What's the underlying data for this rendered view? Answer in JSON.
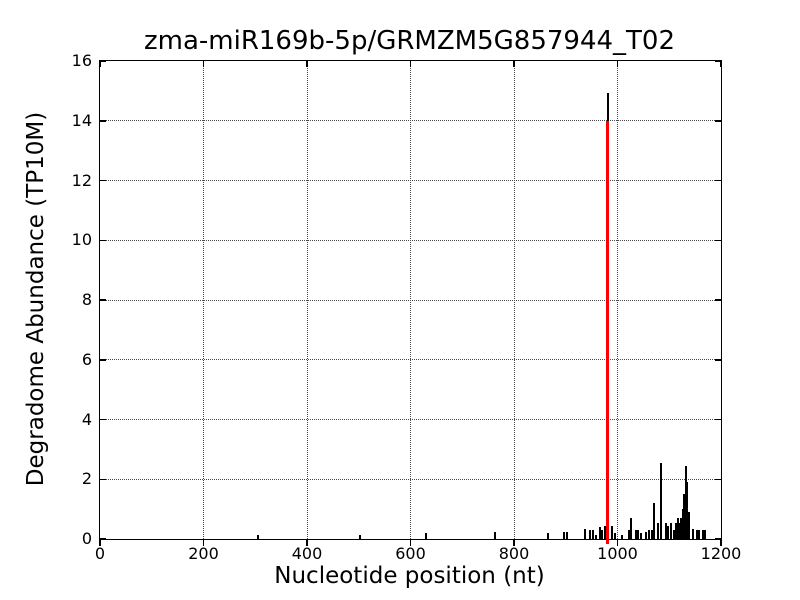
{
  "figure": {
    "background": "#ffffff",
    "axis_color": "#000000"
  },
  "chart_data": {
    "type": "bar",
    "title": "zma-miR169b-5p/GRMZM5G857944_T02",
    "xlabel": "Nucleotide position (nt)",
    "ylabel": "Degradome Abundance (TP10M)",
    "xlim": [
      0,
      1200
    ],
    "ylim": [
      0,
      16
    ],
    "xticks": [
      0,
      200,
      400,
      600,
      800,
      1000,
      1200
    ],
    "yticks": [
      0,
      2,
      4,
      6,
      8,
      10,
      12,
      14,
      16
    ],
    "grid": "dotted-both-axes",
    "legend": "none",
    "bar_color": "#000000",
    "marker_color": "#ff0000",
    "peak": {
      "x": 981,
      "value": 14.93
    },
    "cleavage_marker": {
      "x": 981,
      "height": 14.0,
      "color": "#ff0000"
    },
    "bars": [
      [
        306,
        0.15
      ],
      [
        503,
        0.15
      ],
      [
        629,
        0.2
      ],
      [
        764,
        0.25
      ],
      [
        865,
        0.2
      ],
      [
        896,
        0.25
      ],
      [
        903,
        0.25
      ],
      [
        938,
        0.35
      ],
      [
        946,
        0.3
      ],
      [
        952,
        0.3
      ],
      [
        958,
        0.15
      ],
      [
        966,
        0.4
      ],
      [
        971,
        0.3
      ],
      [
        975,
        0.45
      ],
      [
        981,
        14.93
      ],
      [
        989,
        0.45
      ],
      [
        995,
        0.2
      ],
      [
        1008,
        0.15
      ],
      [
        1023,
        0.3
      ],
      [
        1027,
        0.7
      ],
      [
        1035,
        0.3
      ],
      [
        1039,
        0.3
      ],
      [
        1045,
        0.2
      ],
      [
        1055,
        0.25
      ],
      [
        1060,
        0.3
      ],
      [
        1066,
        0.3
      ],
      [
        1070,
        1.2
      ],
      [
        1078,
        0.55
      ],
      [
        1085,
        2.55
      ],
      [
        1094,
        0.55
      ],
      [
        1098,
        0.45
      ],
      [
        1103,
        0.55
      ],
      [
        1109,
        0.3
      ],
      [
        1113,
        0.55
      ],
      [
        1117,
        0.7
      ],
      [
        1120,
        0.55
      ],
      [
        1123,
        0.7
      ],
      [
        1126,
        1.0
      ],
      [
        1129,
        1.5
      ],
      [
        1132,
        2.45
      ],
      [
        1135,
        1.9
      ],
      [
        1139,
        0.9
      ],
      [
        1146,
        0.35
      ],
      [
        1153,
        0.3
      ],
      [
        1157,
        0.3
      ],
      [
        1165,
        0.3
      ],
      [
        1169,
        0.3
      ]
    ]
  }
}
